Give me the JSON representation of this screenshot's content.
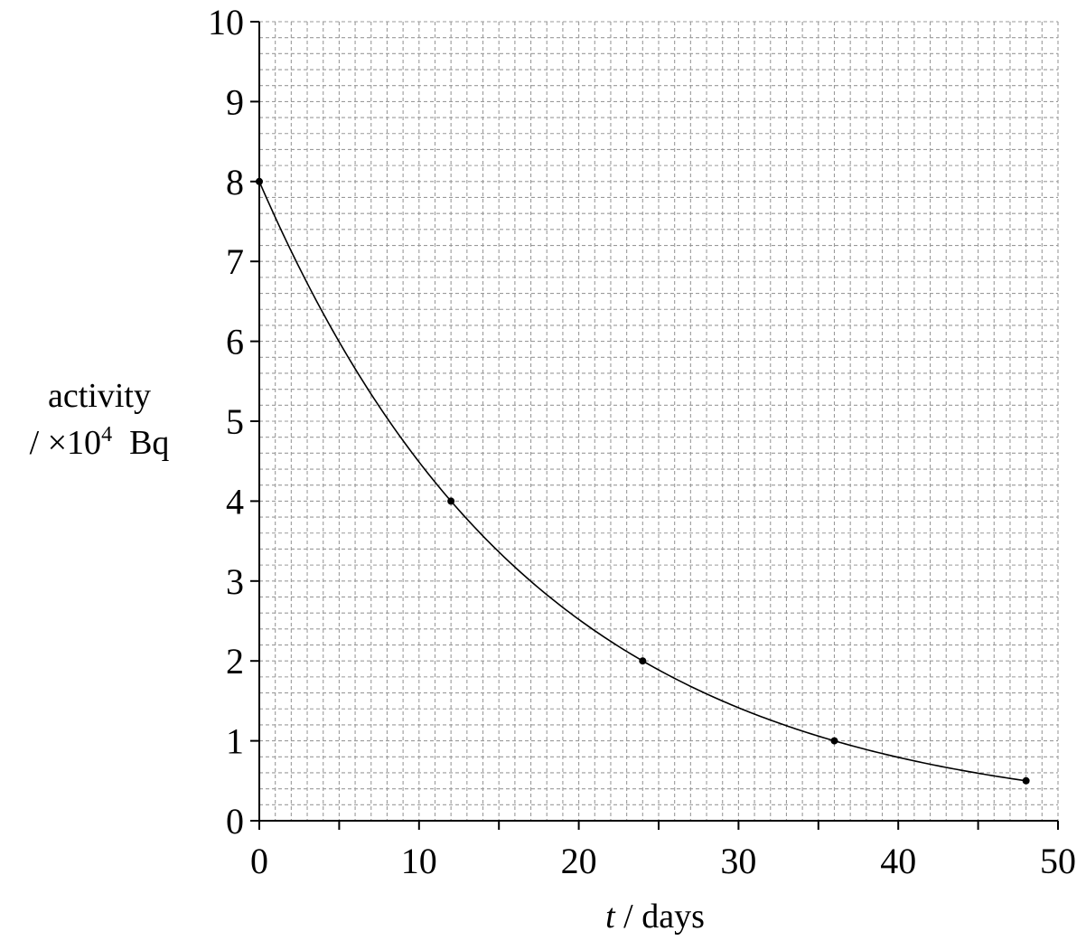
{
  "chart_data": {
    "type": "line",
    "xlabel": {
      "var": "t",
      "unit": " / days"
    },
    "ylabel": {
      "line1": "activity",
      "prefix": "/ ×10",
      "exponent": "4",
      "unit": "Bq"
    },
    "xlim": [
      0,
      50
    ],
    "ylim": [
      0,
      10
    ],
    "x_ticks": [
      0,
      10,
      20,
      30,
      40,
      50
    ],
    "y_ticks": [
      0,
      1,
      2,
      3,
      4,
      5,
      6,
      7,
      8,
      9,
      10
    ],
    "x_minor_step": 1,
    "y_minor_step": 0.2,
    "grid": true,
    "series": [
      {
        "x": [
          0,
          12,
          24,
          36,
          48
        ],
        "y": [
          8,
          4,
          2,
          1,
          0.5
        ]
      }
    ],
    "curve": {
      "type": "exponential",
      "initial": 8,
      "half_life": 12
    }
  }
}
